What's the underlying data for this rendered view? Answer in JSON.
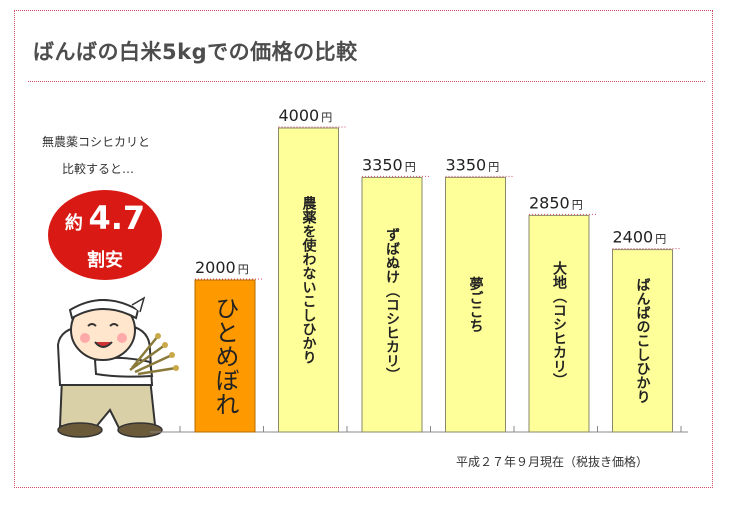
{
  "title": "ばんばの白米5kgでの価格の比較",
  "comparison": {
    "note_line1": "無農薬コシヒカリと",
    "note_line2": "比較すると…",
    "badge_prefix": "約",
    "badge_value": "4.7",
    "badge_suffix": "割安",
    "badge_color": "#d91a14"
  },
  "footnote": "平成２７年９月現在（税抜き価格）",
  "currency": "円",
  "colors": {
    "highlight_bar": "#ff9900",
    "other_bar": "#ffff99",
    "bar_stroke": "#8a8a6a",
    "dotted_lines": "#d24a6a"
  },
  "chart_data": {
    "type": "bar",
    "categories": [
      "ひとめぼれ",
      "農薬を使わないこしひかり",
      "ずばぬけ（コシヒカリ）",
      "夢ごこち",
      "大地（コシヒカリ）",
      "ばんばのこしひかり"
    ],
    "values": [
      2000,
      4000,
      3350,
      3350,
      2850,
      2400
    ],
    "value_labels": [
      "2000",
      "4000",
      "3350",
      "3350",
      "2850",
      "2400"
    ],
    "highlight_index": 0,
    "unit": "円",
    "ylim": [
      0,
      4000
    ]
  },
  "icons": {
    "mascot": "farmer-mascot-holding-rice"
  }
}
